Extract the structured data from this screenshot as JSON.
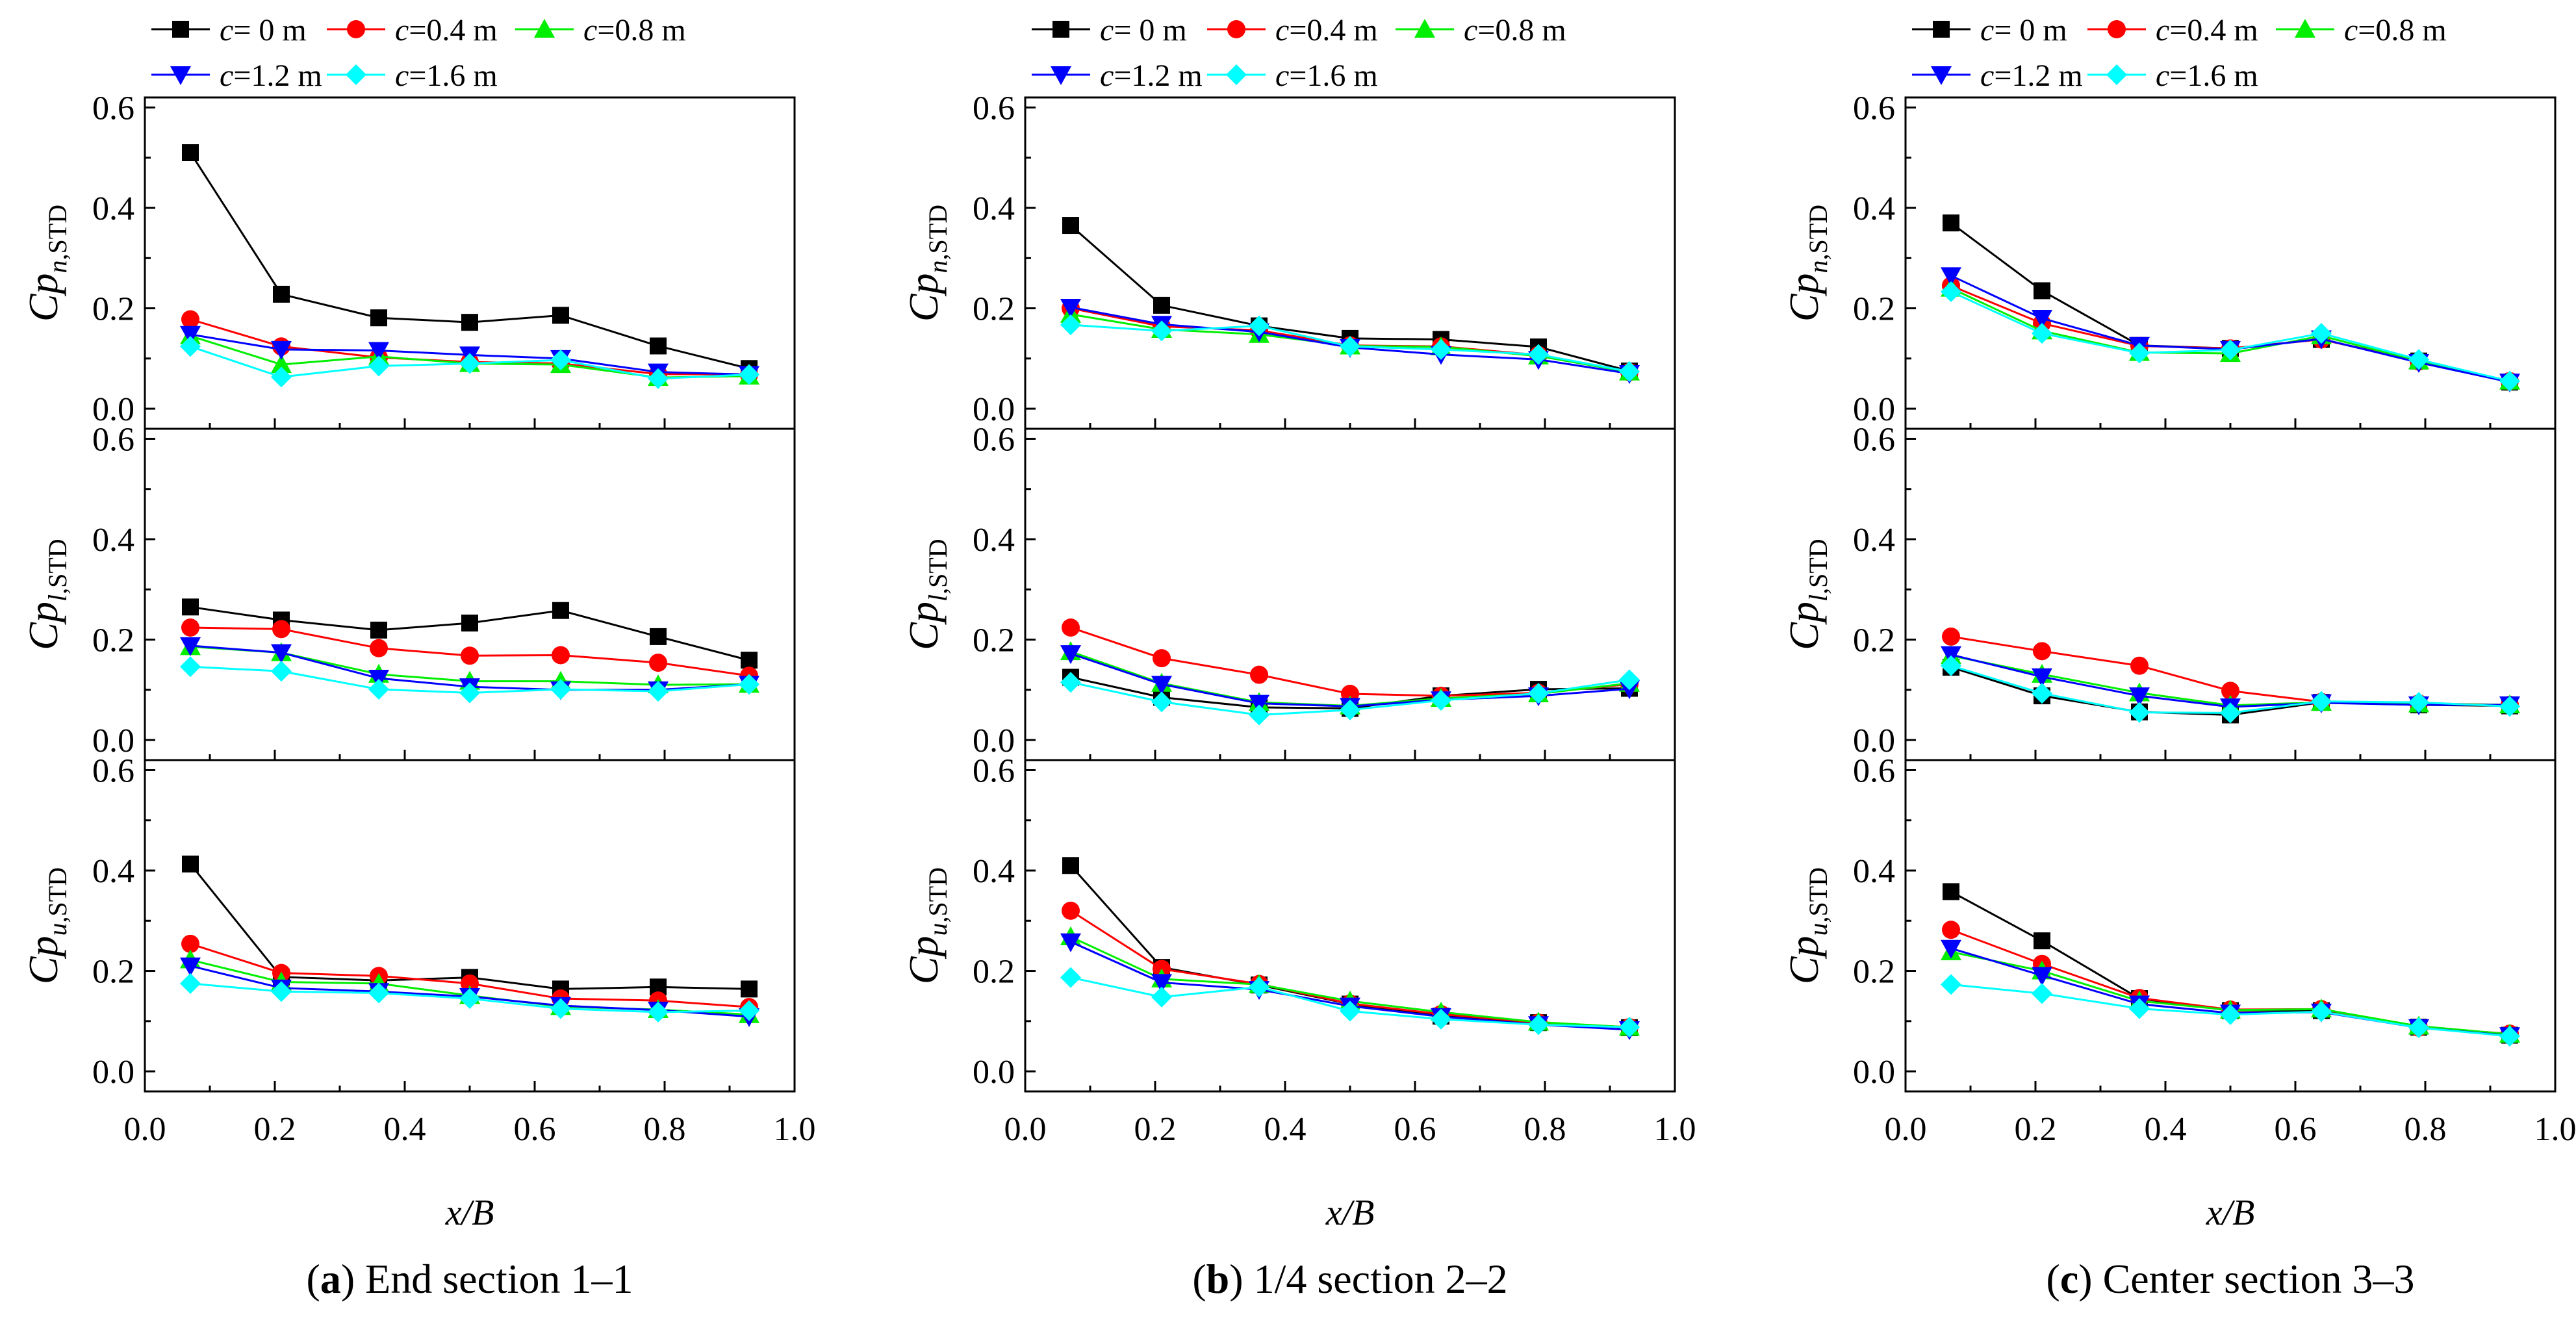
{
  "chart_data": {
    "type": "line",
    "x_ticks": [
      "0.0",
      "0.2",
      "0.4",
      "0.6",
      "0.8",
      "1.0"
    ],
    "y_ticks": [
      "0.0",
      "0.2",
      "0.4",
      "0.6"
    ],
    "xlim": [
      0,
      1
    ],
    "ylim": [
      -0.04,
      0.62
    ],
    "x": [
      0.07,
      0.21,
      0.36,
      0.5,
      0.64,
      0.79,
      0.93
    ],
    "xlabel": {
      "main": "x",
      "rest": "/B"
    },
    "legend": {
      "placement": "top",
      "entries": [
        {
          "variable": "c",
          "text": "= 0  m",
          "color": "#000000",
          "marker": "square"
        },
        {
          "variable": "c",
          "text": "=0.4 m",
          "color": "#ff0000",
          "marker": "circle"
        },
        {
          "variable": "c",
          "text": "=0.8 m",
          "color": "#00ee00",
          "marker": "triangle-up"
        },
        {
          "variable": "c",
          "text": "=1.2 m",
          "color": "#0000ff",
          "marker": "triangle-down"
        },
        {
          "variable": "c",
          "text": "=1.6 m",
          "color": "#00ffff",
          "marker": "diamond"
        }
      ]
    },
    "row_ylabels": [
      {
        "main": "Cp",
        "sub_italic": "n",
        "sub_rest": ",STD"
      },
      {
        "main": "Cp",
        "sub_italic": "l",
        "sub_rest": ",STD"
      },
      {
        "main": "Cp",
        "sub_italic": "u",
        "sub_rest": ",STD"
      }
    ],
    "columns": [
      {
        "caption_bold": "a",
        "caption_rest": " End section 1–1",
        "rows": [
          [
            [
              0.51,
              0.228,
              0.181,
              0.172,
              0.186,
              0.125,
              0.08
            ],
            [
              0.178,
              0.124,
              0.102,
              0.093,
              0.09,
              0.069,
              0.068
            ],
            [
              0.145,
              0.088,
              0.104,
              0.09,
              0.088,
              0.062,
              0.065
            ],
            [
              0.148,
              0.118,
              0.116,
              0.107,
              0.1,
              0.073,
              0.068
            ],
            [
              0.124,
              0.063,
              0.085,
              0.09,
              0.097,
              0.06,
              0.068
            ]
          ],
          [
            [
              0.265,
              0.239,
              0.219,
              0.233,
              0.258,
              0.206,
              0.159
            ],
            [
              0.224,
              0.221,
              0.183,
              0.168,
              0.169,
              0.154,
              0.128
            ],
            [
              0.186,
              0.174,
              0.131,
              0.117,
              0.117,
              0.11,
              0.111
            ],
            [
              0.188,
              0.174,
              0.123,
              0.106,
              0.1,
              0.1,
              0.111
            ],
            [
              0.146,
              0.137,
              0.101,
              0.094,
              0.101,
              0.097,
              0.111
            ]
          ],
          [
            [
              0.413,
              0.188,
              0.181,
              0.187,
              0.164,
              0.168,
              0.164
            ],
            [
              0.254,
              0.196,
              0.19,
              0.175,
              0.145,
              0.141,
              0.128
            ],
            [
              0.222,
              0.178,
              0.175,
              0.151,
              0.129,
              0.123,
              0.113
            ],
            [
              0.21,
              0.166,
              0.159,
              0.149,
              0.131,
              0.122,
              0.109
            ],
            [
              0.175,
              0.159,
              0.156,
              0.145,
              0.125,
              0.118,
              0.121
            ]
          ]
        ]
      },
      {
        "caption_bold": "b",
        "caption_rest": " 1/4 section 2–2",
        "rows": [
          [
            [
              0.365,
              0.206,
              0.165,
              0.14,
              0.138,
              0.123,
              0.075
            ],
            [
              0.2,
              0.164,
              0.156,
              0.126,
              0.124,
              0.107,
              0.073
            ],
            [
              0.188,
              0.158,
              0.148,
              0.125,
              0.123,
              0.105,
              0.073
            ],
            [
              0.202,
              0.168,
              0.153,
              0.122,
              0.108,
              0.098,
              0.07
            ],
            [
              0.167,
              0.155,
              0.165,
              0.124,
              0.118,
              0.108,
              0.074
            ]
          ],
          [
            [
              0.125,
              0.085,
              0.065,
              0.063,
              0.088,
              0.101,
              0.103
            ],
            [
              0.224,
              0.163,
              0.13,
              0.092,
              0.088,
              0.094,
              0.111
            ],
            [
              0.176,
              0.113,
              0.075,
              0.068,
              0.083,
              0.092,
              0.113
            ],
            [
              0.172,
              0.111,
              0.073,
              0.067,
              0.08,
              0.088,
              0.102
            ],
            [
              0.115,
              0.076,
              0.05,
              0.06,
              0.079,
              0.093,
              0.12
            ]
          ],
          [
            [
              0.41,
              0.207,
              0.172,
              0.134,
              0.11,
              0.097,
              0.087
            ],
            [
              0.32,
              0.204,
              0.174,
              0.135,
              0.114,
              0.097,
              0.088
            ],
            [
              0.268,
              0.184,
              0.173,
              0.14,
              0.118,
              0.098,
              0.088
            ],
            [
              0.258,
              0.177,
              0.163,
              0.13,
              0.109,
              0.093,
              0.083
            ],
            [
              0.187,
              0.148,
              0.168,
              0.12,
              0.104,
              0.093,
              0.088
            ]
          ]
        ]
      },
      {
        "caption_bold": "c",
        "caption_rest": " Center section 3–3",
        "rows": [
          [
            [
              0.37,
              0.235,
              0.126,
              0.12,
              0.138,
              0.095,
              0.053
            ],
            [
              0.245,
              0.17,
              0.125,
              0.12,
              0.138,
              0.094,
              0.055
            ],
            [
              0.24,
              0.155,
              0.112,
              0.11,
              0.145,
              0.095,
              0.055
            ],
            [
              0.265,
              0.18,
              0.126,
              0.118,
              0.139,
              0.092,
              0.053
            ],
            [
              0.233,
              0.15,
              0.111,
              0.117,
              0.15,
              0.098,
              0.055
            ]
          ],
          [
            [
              0.145,
              0.088,
              0.056,
              0.05,
              0.075,
              0.07,
              0.068
            ],
            [
              0.206,
              0.177,
              0.148,
              0.098,
              0.076,
              0.073,
              0.07
            ],
            [
              0.168,
              0.131,
              0.094,
              0.069,
              0.075,
              0.072,
              0.07
            ],
            [
              0.17,
              0.126,
              0.088,
              0.066,
              0.074,
              0.07,
              0.07
            ],
            [
              0.148,
              0.093,
              0.055,
              0.054,
              0.077,
              0.075,
              0.067
            ]
          ],
          [
            [
              0.358,
              0.26,
              0.145,
              0.121,
              0.121,
              0.088,
              0.072
            ],
            [
              0.282,
              0.214,
              0.146,
              0.123,
              0.124,
              0.087,
              0.075
            ],
            [
              0.238,
              0.2,
              0.14,
              0.122,
              0.124,
              0.09,
              0.074
            ],
            [
              0.245,
              0.191,
              0.134,
              0.116,
              0.118,
              0.087,
              0.071
            ],
            [
              0.173,
              0.155,
              0.125,
              0.113,
              0.119,
              0.087,
              0.07
            ]
          ]
        ]
      }
    ]
  }
}
